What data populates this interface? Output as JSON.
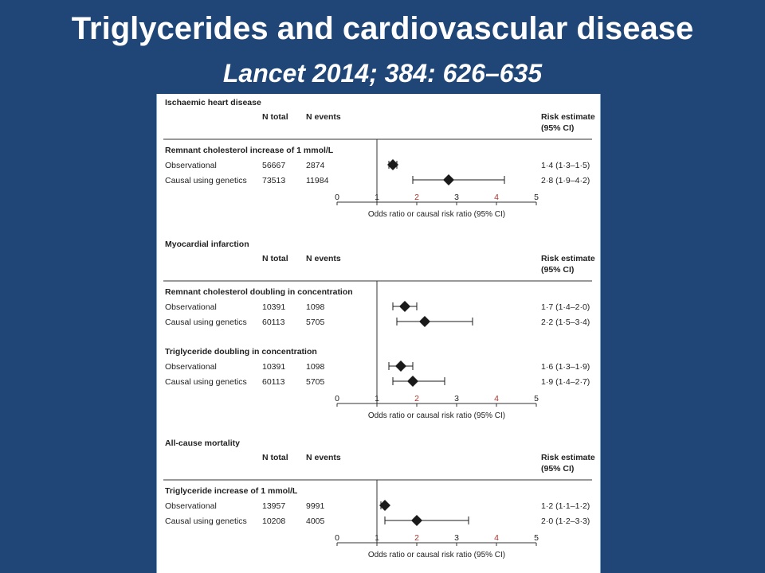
{
  "slide": {
    "title": "Triglycerides and cardiovascular disease",
    "subtitle": "Lancet 2014; 384: 626–635",
    "background": "#1f4677"
  },
  "chart_data": {
    "type": "forest",
    "x_label": "Odds ratio or causal risk ratio (95% CI)",
    "x_ticks": [
      0,
      1,
      2,
      3,
      4,
      5
    ],
    "xlim": [
      0,
      5
    ],
    "reference_line": 1,
    "column_headers": {
      "n_total": "N total",
      "n_events": "N events",
      "risk_line1": "Risk estimate",
      "risk_line2": "(95% CI)"
    },
    "marker_color": "#1a1a1a",
    "panels": [
      {
        "title": "Ischaemic heart disease",
        "groups": [
          {
            "label": "Remnant cholesterol increase of 1 mmol/L",
            "rows": [
              {
                "label": "Observational",
                "n_total": "56667",
                "n_events": "2874",
                "estimate": 1.4,
                "lower": 1.3,
                "upper": 1.5,
                "ci_text": "1·4 (1·3–1·5)"
              },
              {
                "label": "Causal using genetics",
                "n_total": "73513",
                "n_events": "11984",
                "estimate": 2.8,
                "lower": 1.9,
                "upper": 4.2,
                "ci_text": "2·8 (1·9–4·2)"
              }
            ]
          }
        ]
      },
      {
        "title": "Myocardial infarction",
        "groups": [
          {
            "label": "Remnant cholesterol doubling in concentration",
            "rows": [
              {
                "label": "Observational",
                "n_total": "10391",
                "n_events": "1098",
                "estimate": 1.7,
                "lower": 1.4,
                "upper": 2.0,
                "ci_text": "1·7 (1·4–2·0)"
              },
              {
                "label": "Causal using genetics",
                "n_total": "60113",
                "n_events": "5705",
                "estimate": 2.2,
                "lower": 1.5,
                "upper": 3.4,
                "ci_text": "2·2 (1·5–3·4)"
              }
            ]
          },
          {
            "label": "Triglyceride doubling in concentration",
            "rows": [
              {
                "label": "Observational",
                "n_total": "10391",
                "n_events": "1098",
                "estimate": 1.6,
                "lower": 1.3,
                "upper": 1.9,
                "ci_text": "1·6 (1·3–1·9)"
              },
              {
                "label": "Causal using genetics",
                "n_total": "60113",
                "n_events": "5705",
                "estimate": 1.9,
                "lower": 1.4,
                "upper": 2.7,
                "ci_text": "1·9 (1·4–2·7)"
              }
            ]
          }
        ]
      },
      {
        "title": "All-cause mortality",
        "groups": [
          {
            "label": "Triglyceride increase of 1 mmol/L",
            "rows": [
              {
                "label": "Observational",
                "n_total": "13957",
                "n_events": "9991",
                "estimate": 1.2,
                "lower": 1.1,
                "upper": 1.2,
                "ci_text": "1·2 (1·1–1·2)"
              },
              {
                "label": "Causal using genetics",
                "n_total": "10208",
                "n_events": "4005",
                "estimate": 2.0,
                "lower": 1.2,
                "upper": 3.3,
                "ci_text": "2·0 (1·2–3·3)"
              }
            ]
          }
        ]
      }
    ]
  }
}
